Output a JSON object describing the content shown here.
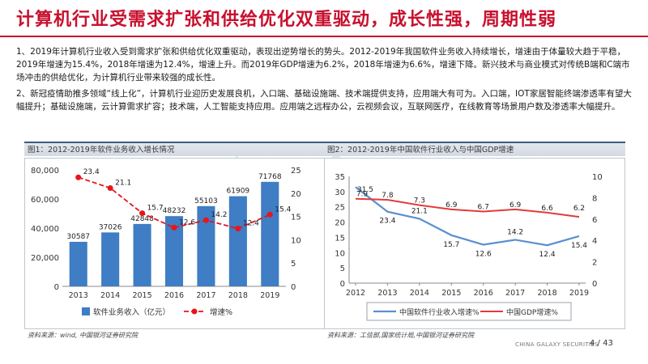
{
  "title": "计算机行业受需求扩张和供给优化双重驱动，成长性强，周期性弱",
  "paragraphs": [
    "1、2019年计算机行业收入受到需求扩张和供给优化双重驱动，表现出逆势增长的势头。2012-2019年我国软件业务收入持续增长，增速由于体量较大趋于平稳，2019年增速为15.4%，2018年增速为12.4%，增速上升。而2019年GDP增速为6.2%，2018年增速为6.6%，增速下降。新兴技术与商业模式对传统B端和C端市场冲击的供给优化，为计算机行业带来较强的成长性。",
    "2、新冠疫情助推多领域“线上化”，计算机行业迎历史发展良机，入口端、基础设施端、技术端提供支持，应用端大有可为。入口端，IOT家居智能终端渗透率有望大幅提升；基础设施端，云计算需求扩容；技术端，人工智能支持应用。应用端之远程办公，云视频会议，互联网医疗，在线教育等场景用户数及渗透率大幅提升。"
  ],
  "watermark": "baogao8.com",
  "footer": {
    "brand": "CHINA GALAXY SECURITIES",
    "page": "4  /  43"
  },
  "chart_data": [
    {
      "type": "bar",
      "title": "图1：2012-2019年软件业务收入增长情况",
      "categories": [
        "2013",
        "2014",
        "2015",
        "2016",
        "2017",
        "2018",
        "2019"
      ],
      "series": [
        {
          "name": "软件业务收入（亿元）",
          "type": "bar",
          "axis": "left",
          "values": [
            30587,
            37026,
            42848,
            48232,
            55103,
            61909,
            71768
          ],
          "color": "#3f7dc4"
        },
        {
          "name": "增速%",
          "type": "line",
          "axis": "right",
          "values": [
            23.4,
            21.1,
            15.7,
            12.6,
            14.2,
            12.4,
            15.4
          ],
          "color": "#e8141b"
        }
      ],
      "ylim_left": [
        0,
        80000
      ],
      "yticks_left": [
        "0",
        "20,000",
        "40,000",
        "60,000",
        "80,000"
      ],
      "ylim_right": [
        0,
        25
      ],
      "yticks_right": [
        "0",
        "5",
        "10",
        "15",
        "20",
        "25"
      ],
      "grid": false,
      "legend": "bottom",
      "source": "资料来源：wind, 中国银河证券研究院"
    },
    {
      "type": "line",
      "title": "图2：2012-2019年中国软件行业收入与中国GDP增速",
      "categories": [
        "2012",
        "2013",
        "2014",
        "2015",
        "2016",
        "2017",
        "2018",
        "2019"
      ],
      "series": [
        {
          "name": "中国软件行业收入增速%",
          "axis": "left",
          "values": [
            31.5,
            23.4,
            21.1,
            15.7,
            12.6,
            14.2,
            12.4,
            15.4
          ],
          "labels": [
            "31.5",
            "23.4",
            "21.1",
            "15.7",
            "12.6",
            "14.2",
            "12.4",
            "15.4"
          ],
          "color": "#5b8fd1"
        },
        {
          "name": "中国GDP增速%",
          "axis": "right",
          "values": [
            7.9,
            7.8,
            7.3,
            6.9,
            6.7,
            6.9,
            6.6,
            6.2
          ],
          "labels": [
            "7.9",
            "7.8",
            "7.3",
            "6.9",
            "6.7",
            "6.9",
            "6.6",
            "6.2"
          ],
          "color": "#e23b3b"
        }
      ],
      "ylim_left": [
        0,
        35
      ],
      "yticks_left": [
        "0",
        "5",
        "10",
        "15",
        "20",
        "25",
        "30",
        "35"
      ],
      "ylim_right": [
        0,
        10
      ],
      "yticks_right": [
        "0",
        "2",
        "4",
        "6",
        "8",
        "10"
      ],
      "grid": false,
      "legend": "bottom",
      "source": "资料来源：工信部,国家统计局,中国银河证券研究院"
    }
  ]
}
